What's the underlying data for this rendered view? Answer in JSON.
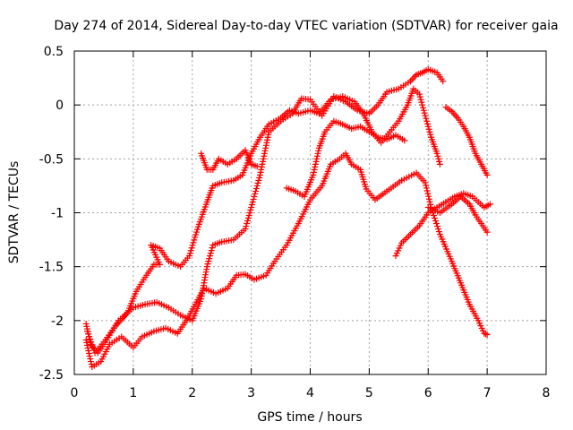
{
  "chart_data": {
    "type": "scatter",
    "title": "Day 274 of 2014, Sidereal Day-to-day VTEC variation (SDTVAR) for receiver gaia",
    "xlabel": "GPS time / hours",
    "ylabel": "SDTVAR / TECUs",
    "xlim": [
      0,
      8
    ],
    "ylim": [
      -2.5,
      0.5
    ],
    "xticks": [
      0,
      1,
      2,
      3,
      4,
      5,
      6,
      7,
      8
    ],
    "xtick_labels": [
      "0",
      "1",
      "2",
      "3",
      "4",
      "5",
      "6",
      "7",
      "8"
    ],
    "yticks": [
      -2.5,
      -2,
      -1.5,
      -1,
      -0.5,
      0,
      0.5
    ],
    "ytick_labels": [
      "-2.5",
      "-2",
      "-1.5",
      "-1",
      "-0.5",
      "0",
      "0.5"
    ],
    "grid": true,
    "marker": "+",
    "color": "#ff0000",
    "series": [
      {
        "values": [
          [
            0.2,
            -2.03
          ],
          [
            0.28,
            -2.22
          ],
          [
            0.4,
            -2.3
          ],
          [
            0.55,
            -2.18
          ],
          [
            0.75,
            -2.0
          ],
          [
            1.0,
            -1.88
          ],
          [
            1.2,
            -1.85
          ],
          [
            1.4,
            -1.83
          ],
          [
            1.6,
            -1.88
          ],
          [
            1.8,
            -1.95
          ],
          [
            2.0,
            -2.0
          ],
          [
            2.15,
            -1.8
          ],
          [
            2.25,
            -1.5
          ],
          [
            2.35,
            -1.3
          ],
          [
            2.5,
            -1.27
          ],
          [
            2.7,
            -1.25
          ],
          [
            2.9,
            -1.15
          ],
          [
            3.0,
            -0.95
          ],
          [
            3.15,
            -0.65
          ],
          [
            3.3,
            -0.25
          ],
          [
            3.5,
            -0.15
          ],
          [
            3.7,
            -0.08
          ],
          [
            3.85,
            0.06
          ],
          [
            4.0,
            0.05
          ],
          [
            4.2,
            -0.1
          ],
          [
            4.4,
            0.08
          ],
          [
            4.6,
            0.03
          ],
          [
            4.8,
            -0.05
          ],
          [
            5.0,
            -0.08
          ],
          [
            5.15,
            0.0
          ],
          [
            5.3,
            0.12
          ],
          [
            5.5,
            0.15
          ],
          [
            5.7,
            0.22
          ],
          [
            5.8,
            0.28
          ],
          [
            5.9,
            0.3
          ],
          [
            6.0,
            0.33
          ],
          [
            6.15,
            0.3
          ],
          [
            6.25,
            0.22
          ]
        ]
      },
      {
        "values": [
          [
            0.2,
            -2.18
          ],
          [
            0.3,
            -2.43
          ],
          [
            0.45,
            -2.38
          ],
          [
            0.6,
            -2.22
          ],
          [
            0.8,
            -2.15
          ],
          [
            1.0,
            -2.25
          ],
          [
            1.15,
            -2.15
          ],
          [
            1.35,
            -2.1
          ],
          [
            1.55,
            -2.07
          ],
          [
            1.75,
            -2.12
          ],
          [
            1.9,
            -2.0
          ],
          [
            2.05,
            -1.85
          ],
          [
            2.2,
            -1.7
          ],
          [
            2.4,
            -1.75
          ],
          [
            2.6,
            -1.7
          ],
          [
            2.75,
            -1.58
          ],
          [
            2.9,
            -1.57
          ],
          [
            3.05,
            -1.62
          ],
          [
            3.25,
            -1.58
          ],
          [
            3.4,
            -1.45
          ],
          [
            3.6,
            -1.3
          ],
          [
            3.8,
            -1.1
          ],
          [
            4.0,
            -0.88
          ],
          [
            4.2,
            -0.75
          ],
          [
            4.35,
            -0.55
          ],
          [
            4.5,
            -0.5
          ],
          [
            4.6,
            -0.45
          ],
          [
            4.7,
            -0.55
          ],
          [
            4.85,
            -0.6
          ],
          [
            4.95,
            -0.78
          ],
          [
            5.1,
            -0.88
          ],
          [
            5.3,
            -0.8
          ],
          [
            5.55,
            -0.7
          ],
          [
            5.8,
            -0.63
          ],
          [
            5.95,
            -0.72
          ],
          [
            6.05,
            -0.95
          ],
          [
            6.2,
            -1.2
          ],
          [
            6.4,
            -1.45
          ],
          [
            6.55,
            -1.65
          ],
          [
            6.7,
            -1.85
          ],
          [
            6.85,
            -2.0
          ],
          [
            6.95,
            -2.12
          ],
          [
            7.0,
            -2.13
          ]
        ]
      },
      {
        "values": [
          [
            0.22,
            -2.1
          ],
          [
            0.35,
            -2.3
          ],
          [
            0.5,
            -2.2
          ],
          [
            0.7,
            -2.05
          ],
          [
            0.9,
            -1.93
          ],
          [
            1.05,
            -1.73
          ],
          [
            1.2,
            -1.6
          ],
          [
            1.35,
            -1.48
          ],
          [
            1.45,
            -1.48
          ],
          [
            1.3,
            -1.3
          ],
          [
            1.45,
            -1.33
          ],
          [
            1.6,
            -1.45
          ],
          [
            1.8,
            -1.5
          ],
          [
            1.95,
            -1.4
          ],
          [
            2.1,
            -1.13
          ],
          [
            2.25,
            -0.9
          ],
          [
            2.35,
            -0.75
          ],
          [
            2.5,
            -0.72
          ],
          [
            2.7,
            -0.7
          ],
          [
            2.85,
            -0.65
          ],
          [
            3.0,
            -0.45
          ],
          [
            3.15,
            -0.3
          ],
          [
            3.3,
            -0.18
          ],
          [
            3.5,
            -0.12
          ],
          [
            3.65,
            -0.05
          ],
          [
            3.8,
            -0.08
          ],
          [
            4.0,
            -0.05
          ],
          [
            4.15,
            -0.08
          ],
          [
            4.35,
            0.05
          ],
          [
            4.55,
            0.08
          ],
          [
            4.75,
            0.03
          ],
          [
            4.9,
            -0.08
          ],
          [
            5.05,
            -0.25
          ],
          [
            5.2,
            -0.35
          ],
          [
            5.35,
            -0.25
          ],
          [
            5.5,
            -0.15
          ],
          [
            5.65,
            0.0
          ],
          [
            5.75,
            0.15
          ],
          [
            5.85,
            0.1
          ],
          [
            5.95,
            -0.1
          ],
          [
            6.05,
            -0.3
          ],
          [
            6.15,
            -0.45
          ],
          [
            6.2,
            -0.55
          ]
        ]
      },
      {
        "values": [
          [
            2.15,
            -0.45
          ],
          [
            2.25,
            -0.6
          ],
          [
            2.35,
            -0.6
          ],
          [
            2.45,
            -0.5
          ],
          [
            2.6,
            -0.55
          ],
          [
            2.75,
            -0.5
          ],
          [
            2.9,
            -0.42
          ],
          [
            3.0,
            -0.55
          ],
          [
            3.1,
            -0.57
          ]
        ]
      },
      {
        "values": [
          [
            3.6,
            -0.77
          ],
          [
            3.75,
            -0.8
          ],
          [
            3.9,
            -0.85
          ],
          [
            4.05,
            -0.65
          ],
          [
            4.15,
            -0.4
          ],
          [
            4.25,
            -0.25
          ],
          [
            4.4,
            -0.15
          ],
          [
            4.55,
            -0.18
          ],
          [
            4.7,
            -0.22
          ],
          [
            4.85,
            -0.2
          ],
          [
            5.0,
            -0.25
          ],
          [
            5.15,
            -0.3
          ],
          [
            5.3,
            -0.32
          ],
          [
            5.45,
            -0.28
          ],
          [
            5.6,
            -0.33
          ]
        ]
      },
      {
        "values": [
          [
            5.45,
            -1.4
          ],
          [
            5.55,
            -1.28
          ],
          [
            5.7,
            -1.2
          ],
          [
            5.85,
            -1.12
          ],
          [
            6.0,
            -1.0
          ],
          [
            6.15,
            -0.95
          ],
          [
            6.3,
            -0.9
          ],
          [
            6.45,
            -0.85
          ],
          [
            6.6,
            -0.82
          ],
          [
            6.75,
            -0.85
          ],
          [
            6.85,
            -0.9
          ],
          [
            6.95,
            -0.95
          ],
          [
            7.05,
            -0.92
          ]
        ]
      },
      {
        "values": [
          [
            6.3,
            -0.02
          ],
          [
            6.4,
            -0.06
          ],
          [
            6.5,
            -0.12
          ],
          [
            6.6,
            -0.2
          ],
          [
            6.7,
            -0.3
          ],
          [
            6.8,
            -0.45
          ],
          [
            6.9,
            -0.55
          ],
          [
            7.0,
            -0.65
          ]
        ]
      },
      {
        "values": [
          [
            6.0,
            -0.95
          ],
          [
            6.2,
            -1.0
          ],
          [
            6.4,
            -0.92
          ],
          [
            6.55,
            -0.85
          ],
          [
            6.7,
            -0.92
          ],
          [
            6.8,
            -1.02
          ],
          [
            6.9,
            -1.1
          ],
          [
            7.0,
            -1.18
          ]
        ]
      }
    ]
  }
}
